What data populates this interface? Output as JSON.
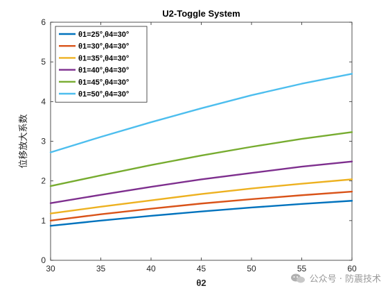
{
  "chart_data": {
    "type": "line",
    "title": "U2-Toggle System",
    "xlabel": "θ2",
    "ylabel": "位移放大系数",
    "xlim": [
      30,
      60
    ],
    "ylim": [
      0,
      6
    ],
    "xticks": [
      30,
      35,
      40,
      45,
      50,
      55,
      60
    ],
    "yticks": [
      0,
      1,
      2,
      3,
      4,
      5,
      6
    ],
    "grid": false,
    "legend_position": "top-left",
    "x": [
      30,
      35,
      40,
      45,
      50,
      55,
      60
    ],
    "series": [
      {
        "name": "θ1=25°,θ4=30°",
        "color": "#0072BD",
        "values": [
          0.87,
          1.0,
          1.12,
          1.23,
          1.33,
          1.42,
          1.5
        ]
      },
      {
        "name": "θ1=30°,θ4=30°",
        "color": "#D95319",
        "values": [
          1.0,
          1.16,
          1.3,
          1.43,
          1.54,
          1.64,
          1.73
        ]
      },
      {
        "name": "θ1=35°,θ4=30°",
        "color": "#EDB120",
        "values": [
          1.18,
          1.35,
          1.51,
          1.67,
          1.81,
          1.93,
          2.04
        ]
      },
      {
        "name": "θ1=40°,θ4=30°",
        "color": "#7E2F8E",
        "values": [
          1.44,
          1.65,
          1.85,
          2.04,
          2.2,
          2.36,
          2.49
        ]
      },
      {
        "name": "θ1=45°,θ4=30°",
        "color": "#77AC30",
        "values": [
          1.87,
          2.14,
          2.4,
          2.64,
          2.86,
          3.06,
          3.23
        ]
      },
      {
        "name": "θ1=50°,θ4=30°",
        "color": "#4DBEEE",
        "values": [
          2.72,
          3.11,
          3.48,
          3.83,
          4.16,
          4.45,
          4.7
        ]
      }
    ]
  },
  "watermark": {
    "text": "公众号 · 防震技术",
    "icon": "wechat-icon"
  }
}
